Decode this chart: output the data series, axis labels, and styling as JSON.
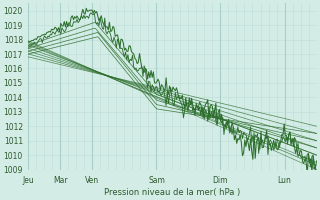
{
  "xlabel": "Pression niveau de la mer( hPa )",
  "ylim": [
    1009,
    1020.5
  ],
  "yticks": [
    1009,
    1010,
    1011,
    1012,
    1013,
    1014,
    1015,
    1016,
    1017,
    1018,
    1019,
    1020
  ],
  "day_labels": [
    "Jeu",
    "Mar",
    "Ven",
    "Sam",
    "Dim",
    "Lun"
  ],
  "day_positions": [
    0,
    24,
    48,
    96,
    144,
    192
  ],
  "total_hours": 216,
  "bg_color": "#d4ece6",
  "grid_color_major": "#a8cfc8",
  "grid_color_minor": "#bcddd8",
  "line_color": "#2d6e2d",
  "text_color": "#2d5a2d",
  "figsize": [
    3.2,
    2.0
  ],
  "dpi": 100
}
